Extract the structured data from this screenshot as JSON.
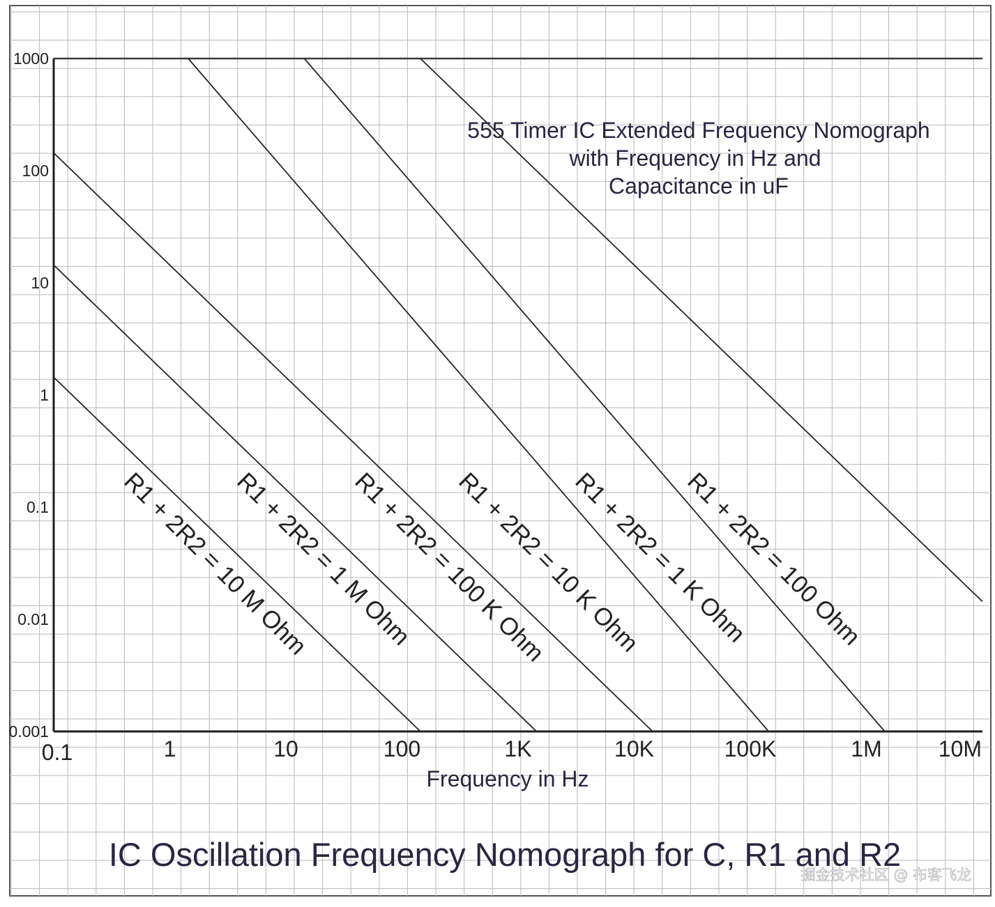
{
  "chart_data": {
    "type": "line",
    "title": "IC Oscillation Frequency Nomograph for C, R1 and R2",
    "subtitle_lines": [
      "555 Timer IC Extended Frequency Nomograph",
      "with Frequency in Hz and",
      "Capacitance in uF"
    ],
    "xlabel": "Frequency in Hz",
    "ylabel": "",
    "x_scale": "log",
    "y_scale": "log",
    "xlim": [
      0.1,
      10000000
    ],
    "ylim": [
      0.001,
      1000
    ],
    "x_ticks": [
      {
        "value": 0.1,
        "label": "0.1"
      },
      {
        "value": 1,
        "label": "1"
      },
      {
        "value": 10,
        "label": "10"
      },
      {
        "value": 100,
        "label": "100"
      },
      {
        "value": 1000,
        "label": "1K"
      },
      {
        "value": 10000,
        "label": "10K"
      },
      {
        "value": 100000,
        "label": "100K"
      },
      {
        "value": 1000000,
        "label": "1M"
      },
      {
        "value": 10000000,
        "label": "10M"
      }
    ],
    "y_ticks": [
      {
        "value": 1000,
        "label": "1000"
      },
      {
        "value": 100,
        "label": "100"
      },
      {
        "value": 10,
        "label": "10"
      },
      {
        "value": 1,
        "label": "1"
      },
      {
        "value": 0.1,
        "label": "0.1"
      },
      {
        "value": 0.01,
        "label": "0.01"
      },
      {
        "value": 0.001,
        "label": "0.001"
      }
    ],
    "grid": true,
    "series": [
      {
        "name": "R1 + 2R2 = 10 M Ohm",
        "x": [
          0.1,
          144
        ],
        "y": [
          1.44,
          0.001
        ]
      },
      {
        "name": "R1 + 2R2 = 1 M Ohm",
        "x": [
          0.1,
          1440
        ],
        "y": [
          14.4,
          0.001
        ]
      },
      {
        "name": "R1 + 2R2 = 100 K Ohm",
        "x": [
          0.1,
          14400
        ],
        "y": [
          144,
          0.001
        ]
      },
      {
        "name": "R1 + 2R2 = 10 K Ohm",
        "x": [
          1.44,
          144000
        ],
        "y": [
          1000,
          0.001
        ]
      },
      {
        "name": "R1 + 2R2 = 1 K Ohm",
        "x": [
          14.4,
          1440000
        ],
        "y": [
          1000,
          0.001
        ]
      },
      {
        "name": "R1 + 2R2 = 100 Ohm",
        "x": [
          144,
          10000000
        ],
        "y": [
          1000,
          0.0144
        ]
      }
    ]
  },
  "watermark": "掘金技术社区 @ 布客飞龙"
}
